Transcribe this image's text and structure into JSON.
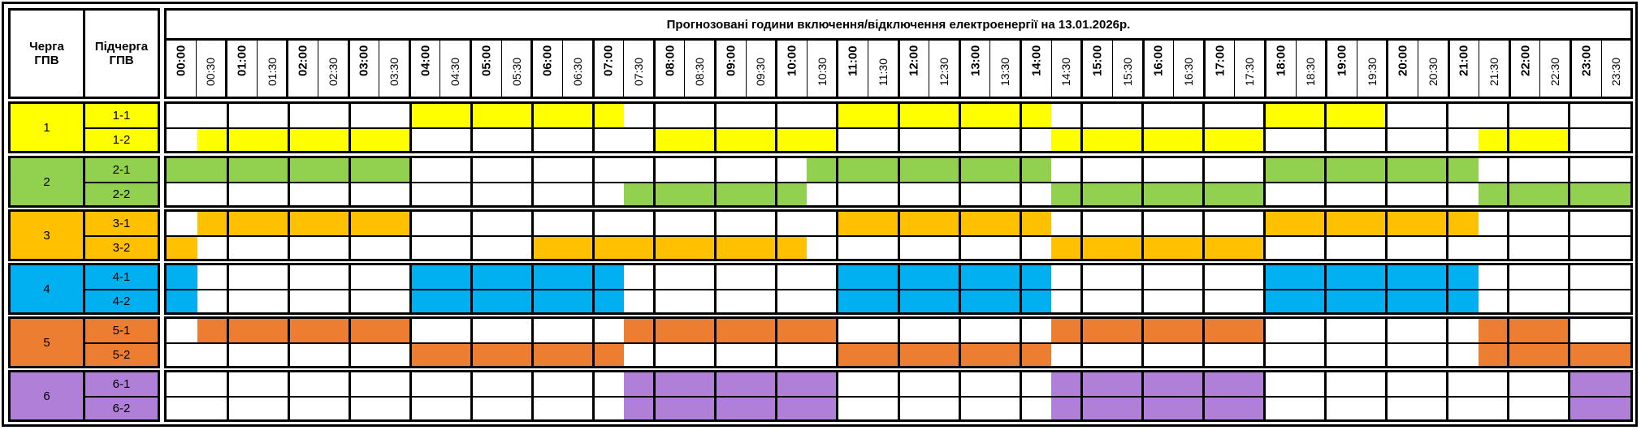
{
  "header": {
    "queue_label": "Черга\nГПВ",
    "subqueue_label": "Підчерга\nГПВ",
    "title": "Прогнозовані години включення/відключення електроенергії на 13.01.2026р."
  },
  "time_slots": [
    "00:00",
    "00:30",
    "01:00",
    "01:30",
    "02:00",
    "02:30",
    "03:00",
    "03:30",
    "04:00",
    "04:30",
    "05:00",
    "05:30",
    "06:00",
    "06:30",
    "07:00",
    "07:30",
    "08:00",
    "08:30",
    "09:00",
    "09:30",
    "10:00",
    "10:30",
    "11:00",
    "11:30",
    "12:00",
    "12:30",
    "13:00",
    "13:30",
    "14:00",
    "14:30",
    "15:00",
    "15:30",
    "16:00",
    "16:30",
    "17:00",
    "17:30",
    "18:00",
    "18:30",
    "19:00",
    "19:30",
    "20:00",
    "20:30",
    "21:00",
    "21:30",
    "22:00",
    "22:30",
    "23:00",
    "23:30"
  ],
  "groups": [
    {
      "queue": "1",
      "color": "#ffff00",
      "subqueues": [
        {
          "label": "1-1",
          "off_slots": [
            8,
            9,
            10,
            11,
            12,
            13,
            14,
            22,
            23,
            24,
            25,
            26,
            27,
            28,
            36,
            37,
            38,
            39
          ]
        },
        {
          "label": "1-2",
          "off_slots": [
            1,
            2,
            3,
            4,
            5,
            6,
            7,
            16,
            17,
            18,
            19,
            20,
            21,
            29,
            30,
            31,
            32,
            33,
            34,
            35,
            43,
            44,
            45
          ]
        }
      ]
    },
    {
      "queue": "2",
      "color": "#92d050",
      "subqueues": [
        {
          "label": "2-1",
          "off_slots": [
            0,
            1,
            2,
            3,
            4,
            5,
            6,
            7,
            21,
            22,
            23,
            24,
            25,
            26,
            27,
            28,
            36,
            37,
            38,
            39,
            40,
            41,
            42
          ]
        },
        {
          "label": "2-2",
          "off_slots": [
            15,
            16,
            17,
            18,
            19,
            20,
            29,
            30,
            31,
            32,
            33,
            34,
            35,
            43,
            44,
            45,
            46,
            47
          ]
        }
      ]
    },
    {
      "queue": "3",
      "color": "#ffc000",
      "subqueues": [
        {
          "label": "3-1",
          "off_slots": [
            1,
            2,
            3,
            4,
            5,
            6,
            7,
            22,
            23,
            24,
            25,
            26,
            27,
            28,
            36,
            37,
            38,
            39,
            40,
            41,
            42
          ]
        },
        {
          "label": "3-2",
          "off_slots": [
            0,
            12,
            13,
            14,
            15,
            16,
            17,
            18,
            19,
            20,
            29,
            30,
            31,
            32,
            33,
            34,
            35
          ]
        }
      ]
    },
    {
      "queue": "4",
      "color": "#00b0f0",
      "subqueues": [
        {
          "label": "4-1",
          "off_slots": [
            0,
            8,
            9,
            10,
            11,
            12,
            13,
            14,
            22,
            23,
            24,
            25,
            26,
            27,
            28,
            36,
            37,
            38,
            39,
            40,
            41,
            42
          ]
        },
        {
          "label": "4-2",
          "off_slots": [
            0,
            8,
            9,
            10,
            11,
            12,
            13,
            14,
            22,
            23,
            24,
            25,
            26,
            27,
            28,
            36,
            37,
            38,
            39,
            40,
            41,
            42
          ]
        }
      ]
    },
    {
      "queue": "5",
      "color": "#ed7d31",
      "subqueues": [
        {
          "label": "5-1",
          "off_slots": [
            1,
            2,
            3,
            4,
            5,
            6,
            7,
            15,
            16,
            17,
            18,
            19,
            20,
            21,
            29,
            30,
            31,
            32,
            33,
            34,
            35,
            43,
            44,
            45
          ]
        },
        {
          "label": "5-2",
          "off_slots": [
            8,
            9,
            10,
            11,
            12,
            13,
            14,
            22,
            23,
            24,
            25,
            26,
            27,
            28,
            43,
            44,
            45,
            46,
            47
          ]
        }
      ]
    },
    {
      "queue": "6",
      "color": "#b07fd8",
      "subqueues": [
        {
          "label": "6-1",
          "off_slots": [
            15,
            16,
            17,
            18,
            19,
            20,
            21,
            29,
            30,
            31,
            32,
            33,
            34,
            35,
            46,
            47
          ]
        },
        {
          "label": "6-2",
          "off_slots": [
            15,
            16,
            17,
            18,
            19,
            20,
            21,
            29,
            30,
            31,
            32,
            33,
            34,
            35,
            46,
            47
          ]
        }
      ]
    }
  ]
}
